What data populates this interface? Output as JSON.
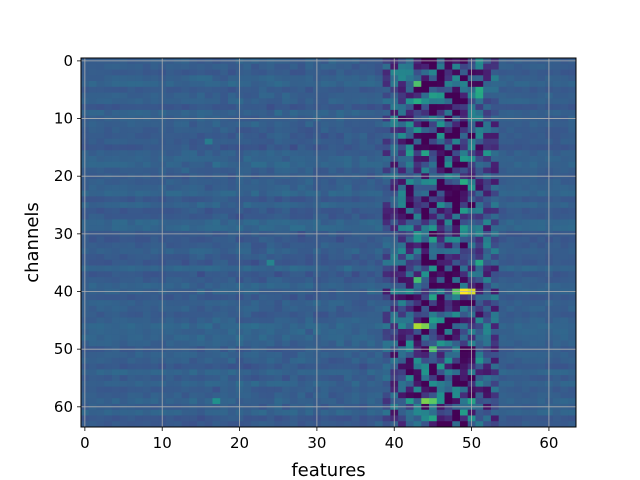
{
  "chart_data": {
    "type": "heatmap",
    "xlabel": "features",
    "ylabel": "channels",
    "x_range": [
      -0.5,
      63.5
    ],
    "y_range": [
      -0.5,
      63.5
    ],
    "y_inverted": true,
    "grid": true,
    "colormap": "viridis",
    "xticks": [
      0,
      10,
      20,
      30,
      40,
      50,
      60
    ],
    "yticks": [
      0,
      10,
      20,
      30,
      40,
      50,
      60
    ],
    "rows": 64,
    "cols": 64,
    "baseline_value": 0.3,
    "active_band": {
      "features": [
        39,
        53
      ],
      "note_value_range": [
        0.0,
        1.0
      ]
    },
    "hotspots": [
      {
        "channel": 4,
        "feature": 43,
        "value": 0.72
      },
      {
        "channel": 5,
        "feature": 51,
        "value": 0.62
      },
      {
        "channel": 6,
        "feature": 51,
        "value": 0.6
      },
      {
        "channel": 7,
        "feature": 43,
        "value": 0.62
      },
      {
        "channel": 8,
        "feature": 46,
        "value": 0.02
      },
      {
        "channel": 8,
        "feature": 47,
        "value": 0.04
      },
      {
        "channel": 16,
        "feature": 42,
        "value": 0.55
      },
      {
        "channel": 16,
        "feature": 44,
        "value": 0.58
      },
      {
        "channel": 16,
        "feature": 52,
        "value": 0.52
      },
      {
        "channel": 21,
        "feature": 49,
        "value": 0.62
      },
      {
        "channel": 26,
        "feature": 49,
        "value": 0.55
      },
      {
        "channel": 35,
        "feature": 51,
        "value": 0.6
      },
      {
        "channel": 38,
        "feature": 43,
        "value": 0.7
      },
      {
        "channel": 40,
        "feature": 49,
        "value": 1.0
      },
      {
        "channel": 40,
        "feature": 50,
        "value": 0.95
      },
      {
        "channel": 40,
        "feature": 48,
        "value": 0.75
      },
      {
        "channel": 46,
        "feature": 43,
        "value": 0.88
      },
      {
        "channel": 46,
        "feature": 44,
        "value": 0.8
      },
      {
        "channel": 50,
        "feature": 45,
        "value": 0.72
      },
      {
        "channel": 52,
        "feature": 51,
        "value": 0.52
      },
      {
        "channel": 59,
        "feature": 44,
        "value": 0.8
      },
      {
        "channel": 59,
        "feature": 45,
        "value": 0.75
      },
      {
        "channel": 59,
        "feature": 42,
        "value": 0.55
      },
      {
        "channel": 59,
        "feature": 50,
        "value": 0.58
      },
      {
        "channel": 61,
        "feature": 49,
        "value": 0.55
      },
      {
        "channel": 59,
        "feature": 17,
        "value": 0.5
      },
      {
        "channel": 35,
        "feature": 24,
        "value": 0.45
      },
      {
        "channel": 14,
        "feature": 16,
        "value": 0.42
      }
    ]
  }
}
